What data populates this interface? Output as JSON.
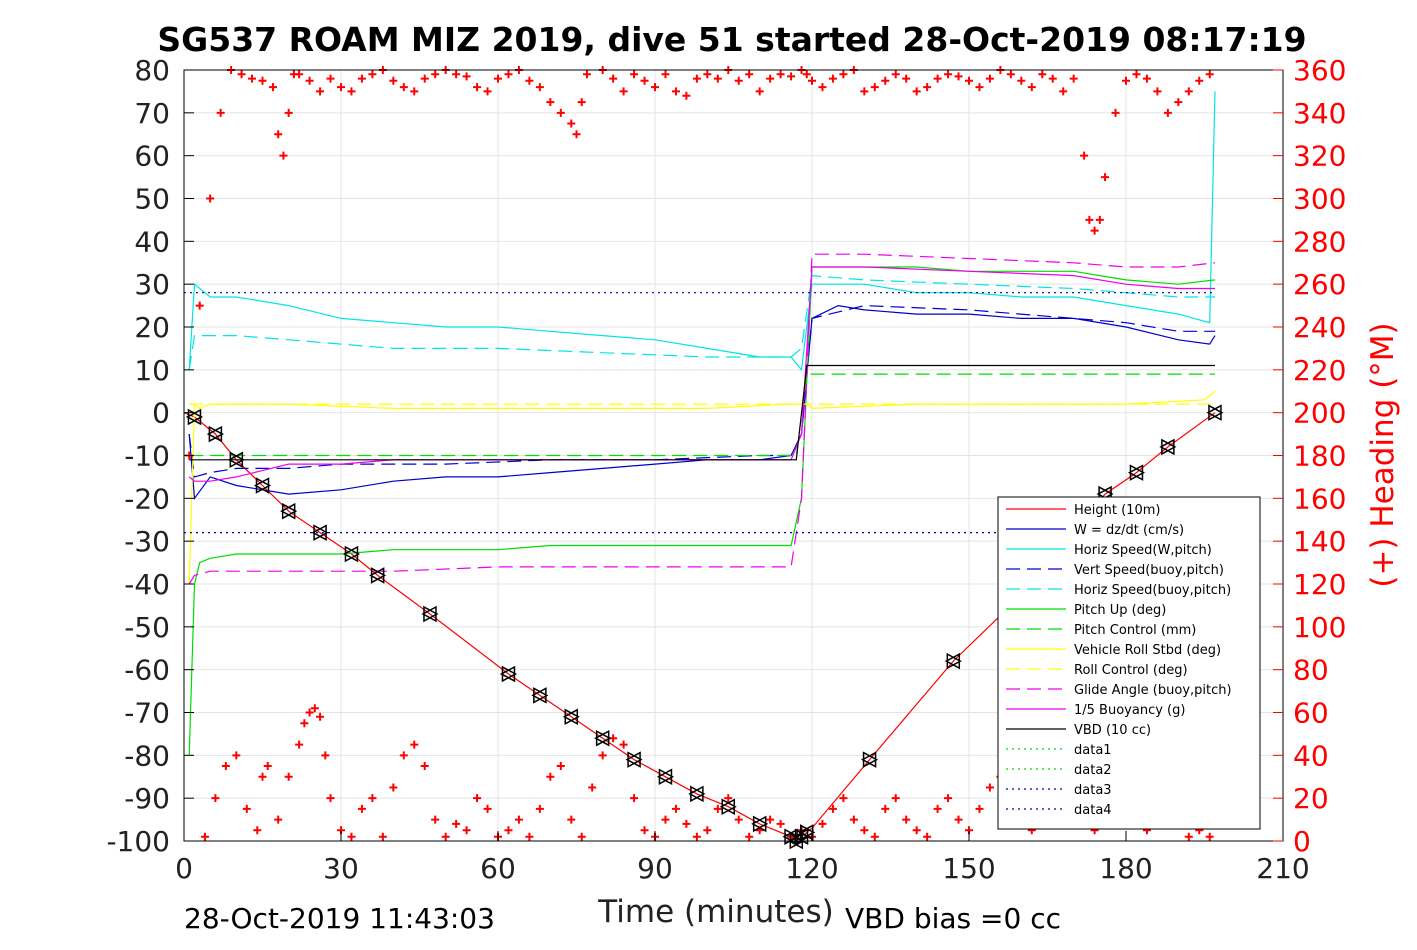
{
  "chart_data": {
    "type": "line",
    "title": "SG537 ROAM MIZ 2019, dive 51 started 28-Oct-2019 08:17:19",
    "xlabel": "Time (minutes)",
    "ylabel": "",
    "y2label": "(+) Heading (°M)",
    "xlim": [
      0,
      210
    ],
    "ylim": [
      -100,
      80
    ],
    "y2lim": [
      0,
      360
    ],
    "xticks": [
      0,
      30,
      60,
      90,
      120,
      150,
      180,
      210
    ],
    "yticks": [
      80,
      70,
      60,
      50,
      40,
      30,
      20,
      10,
      0,
      -10,
      -20,
      -30,
      -40,
      -50,
      -60,
      -70,
      -80,
      -90,
      -100
    ],
    "y2ticks": [
      360,
      340,
      320,
      300,
      280,
      260,
      240,
      220,
      200,
      180,
      160,
      140,
      120,
      100,
      80,
      60,
      40,
      20,
      0
    ],
    "grid": true,
    "legend_position": "right",
    "footer_left": "28-Oct-2019 11:43:03",
    "footer_right": "VBD bias =0 cc",
    "colors": {
      "height": "#ff0000",
      "w": "#0000cc",
      "horiz_w": "#00e5e5",
      "vert_buoy": "#0000cc",
      "horiz_buoy": "#00e5e5",
      "pitch": "#00dd00",
      "pitch_ctrl": "#00dd00",
      "roll": "#ffff00",
      "roll_ctrl": "#ffff00",
      "glide": "#ee00ee",
      "buoy": "#ee00ee",
      "vbd": "#000000",
      "heading": "#ff0000"
    },
    "series": [
      {
        "name": "Height (10m)",
        "key": "height",
        "style": "solid",
        "x": [
          0,
          2,
          6,
          10,
          15,
          20,
          26,
          32,
          37,
          47,
          62,
          68,
          74,
          80,
          86,
          92,
          98,
          104,
          110,
          116,
          117,
          118,
          119,
          120,
          131,
          147,
          158,
          176,
          182,
          188,
          197
        ],
        "y": [
          0,
          -1,
          -5,
          -11,
          -17,
          -23,
          -28,
          -33,
          -38,
          -47,
          -61,
          -66,
          -71,
          -76,
          -81,
          -85,
          -89,
          -92,
          -96,
          -99,
          -100,
          -99,
          -98,
          -97,
          -81,
          -58,
          -45,
          -19,
          -14,
          -8,
          0
        ]
      },
      {
        "name": "W = dz/dt (cm/s)",
        "key": "w",
        "style": "solid",
        "x": [
          1,
          2,
          5,
          10,
          20,
          30,
          40,
          50,
          60,
          70,
          80,
          90,
          100,
          110,
          116,
          118,
          120,
          125,
          130,
          140,
          150,
          160,
          170,
          180,
          190,
          196,
          197
        ],
        "y": [
          -5,
          -20,
          -15,
          -17,
          -19,
          -18,
          -16,
          -15,
          -15,
          -14,
          -13,
          -12,
          -11,
          -11,
          -10,
          -5,
          22,
          25,
          24,
          23,
          23,
          22,
          22,
          20,
          17,
          16,
          18
        ]
      },
      {
        "name": "Horiz Speed(W,pitch)",
        "key": "horiz_w",
        "style": "solid",
        "x": [
          1,
          2,
          5,
          10,
          20,
          30,
          40,
          50,
          60,
          70,
          80,
          90,
          100,
          110,
          116,
          118,
          120,
          130,
          140,
          150,
          160,
          170,
          180,
          190,
          196,
          197
        ],
        "y": [
          10,
          30,
          27,
          27,
          25,
          22,
          21,
          20,
          20,
          19,
          18,
          17,
          15,
          13,
          13,
          10,
          30,
          30,
          28,
          28,
          27,
          27,
          25,
          23,
          21,
          75
        ]
      },
      {
        "name": "Vert Speed(buoy,pitch)",
        "key": "vert_buoy",
        "style": "dashed",
        "x": [
          1,
          2,
          5,
          10,
          20,
          30,
          50,
          70,
          90,
          110,
          116,
          118,
          120,
          130,
          150,
          170,
          180,
          190,
          197
        ],
        "y": [
          -5,
          -15,
          -14,
          -13,
          -13,
          -12,
          -12,
          -11,
          -11,
          -10,
          -10,
          -5,
          22,
          25,
          24,
          22,
          21,
          19,
          19
        ]
      },
      {
        "name": "Horiz Speed(buoy,pitch)",
        "key": "horiz_buoy",
        "style": "dashed",
        "x": [
          1,
          2,
          10,
          20,
          30,
          40,
          50,
          60,
          80,
          100,
          116,
          118,
          120,
          130,
          150,
          170,
          180,
          190,
          197
        ],
        "y": [
          10,
          18,
          18,
          17,
          16,
          15,
          15,
          15,
          14,
          13,
          13,
          15,
          32,
          31,
          30,
          29,
          28,
          27,
          27
        ]
      },
      {
        "name": "Pitch Up (deg)",
        "key": "pitch",
        "style": "solid",
        "x": [
          1,
          2,
          3,
          5,
          10,
          20,
          30,
          40,
          50,
          60,
          70,
          80,
          90,
          100,
          110,
          116,
          118,
          120,
          130,
          140,
          150,
          160,
          170,
          175,
          180,
          190,
          197
        ],
        "y": [
          -80,
          -40,
          -35,
          -34,
          -33,
          -33,
          -33,
          -32,
          -32,
          -32,
          -31,
          -31,
          -31,
          -31,
          -31,
          -31,
          -20,
          34,
          34,
          34,
          33,
          33,
          33,
          32,
          31,
          30,
          31
        ]
      },
      {
        "name": "Pitch Control (mm)",
        "key": "pitch_ctrl",
        "style": "dashed",
        "x": [
          1,
          3,
          60,
          116,
          117,
          119,
          120,
          197
        ],
        "y": [
          -10,
          -10,
          -10,
          -10,
          -10,
          9,
          9,
          9
        ]
      },
      {
        "name": "Vehicle Roll Stbd (deg)",
        "key": "roll",
        "style": "solid",
        "x": [
          1,
          2,
          3,
          5,
          10,
          20,
          40,
          60,
          80,
          100,
          115,
          117,
          119,
          120,
          140,
          160,
          180,
          195,
          197
        ],
        "y": [
          -40,
          2,
          1,
          2,
          2,
          2,
          1,
          1,
          1,
          1,
          2,
          2,
          2,
          1,
          2,
          2,
          2,
          3,
          5
        ]
      },
      {
        "name": "Roll Control (deg)",
        "key": "roll_ctrl",
        "style": "dashed",
        "x": [
          1,
          3,
          116,
          120,
          197
        ],
        "y": [
          2,
          2,
          2,
          2,
          2
        ]
      },
      {
        "name": "Glide Angle (buoy,pitch)",
        "key": "glide",
        "style": "dashed",
        "x": [
          1,
          2,
          5,
          10,
          20,
          40,
          60,
          80,
          100,
          116,
          118,
          120,
          130,
          150,
          170,
          180,
          190,
          197
        ],
        "y": [
          -40,
          -38,
          -37,
          -37,
          -37,
          -37,
          -36,
          -36,
          -36,
          -36,
          -20,
          37,
          37,
          36,
          35,
          34,
          34,
          35
        ]
      },
      {
        "name": "1/5 Buoyancy (g)",
        "key": "buoy",
        "style": "solid",
        "x": [
          1,
          2,
          5,
          10,
          20,
          30,
          40,
          60,
          80,
          100,
          116,
          118,
          120,
          130,
          150,
          170,
          180,
          190,
          197
        ],
        "y": [
          -15,
          -16,
          -16,
          -15,
          -12,
          -12,
          -11,
          -11,
          -11,
          -11,
          -11,
          -5,
          34,
          34,
          33,
          32,
          30,
          29,
          29
        ]
      },
      {
        "name": "VBD (10 cc)",
        "key": "vbd",
        "style": "solid",
        "x": [
          1,
          2,
          116,
          117,
          119,
          120,
          197
        ],
        "y": [
          -11,
          -11,
          -11,
          -11,
          11,
          11,
          11
        ]
      },
      {
        "name": "data1",
        "key": "data1",
        "style": "dotted",
        "color": "#00dd00",
        "x": [],
        "y": []
      },
      {
        "name": "data2",
        "key": "data2",
        "style": "dotted",
        "color": "#00dd00",
        "x": [],
        "y": []
      },
      {
        "name": "data3",
        "key": "data3",
        "style": "dotted",
        "color": "#0000aa",
        "x": [
          0,
          197
        ],
        "y": [
          28,
          28
        ]
      },
      {
        "name": "data4",
        "key": "data4",
        "style": "dotted",
        "color": "#0000aa",
        "x": [
          0,
          197
        ],
        "y": [
          -28,
          -28
        ]
      }
    ],
    "heading": {
      "name": "Heading (°M)",
      "marker": "+",
      "x": [
        1,
        3,
        5,
        7,
        9,
        11,
        13,
        15,
        17,
        18,
        19,
        20,
        21,
        22,
        24,
        26,
        28,
        30,
        32,
        34,
        36,
        38,
        40,
        42,
        44,
        46,
        48,
        50,
        52,
        54,
        56,
        58,
        60,
        62,
        64,
        66,
        68,
        70,
        72,
        74,
        75,
        76,
        77,
        80,
        82,
        84,
        86,
        88,
        90,
        92,
        94,
        96,
        98,
        100,
        102,
        104,
        106,
        108,
        110,
        112,
        114,
        116,
        118,
        119,
        120,
        122,
        124,
        126,
        128,
        130,
        132,
        134,
        136,
        138,
        140,
        142,
        144,
        146,
        148,
        150,
        152,
        154,
        156,
        158,
        160,
        162,
        164,
        166,
        168,
        170,
        172,
        173,
        174,
        175,
        176,
        178,
        180,
        182,
        184,
        186,
        188,
        190,
        192,
        194,
        196
      ],
      "y": [
        180,
        250,
        300,
        340,
        360,
        358,
        356,
        355,
        352,
        330,
        320,
        340,
        358,
        358,
        355,
        350,
        356,
        352,
        350,
        356,
        358,
        360,
        355,
        352,
        350,
        356,
        358,
        360,
        358,
        357,
        352,
        350,
        356,
        358,
        360,
        355,
        352,
        345,
        340,
        335,
        330,
        345,
        358,
        360,
        356,
        350,
        358,
        355,
        352,
        358,
        350,
        348,
        356,
        358,
        356,
        360,
        355,
        358,
        350,
        356,
        358,
        357,
        360,
        358,
        355,
        352,
        356,
        358,
        360,
        350,
        352,
        355,
        358,
        356,
        350,
        352,
        356,
        358,
        357,
        355,
        352,
        356,
        360,
        358,
        355,
        352,
        358,
        356,
        350,
        356,
        320,
        290,
        285,
        290,
        310,
        340,
        355,
        358,
        356,
        350,
        340,
        345,
        350,
        355,
        358
      ],
      "x2": [
        4,
        6,
        8,
        10,
        12,
        14,
        15,
        16,
        18,
        20,
        22,
        23,
        24,
        25,
        26,
        27,
        28,
        30,
        32,
        34,
        36,
        38,
        40,
        42,
        44,
        46,
        48,
        50,
        52,
        54,
        56,
        58,
        60,
        62,
        64,
        66,
        68,
        70,
        72,
        74,
        76,
        78,
        80,
        82,
        84,
        86,
        88,
        90,
        92,
        94,
        96,
        98,
        100,
        102,
        104,
        106,
        108,
        110,
        112,
        114,
        116,
        118,
        120,
        122,
        124,
        126,
        128,
        130,
        132,
        134,
        136,
        138,
        140,
        142,
        144,
        146,
        148,
        150,
        152,
        154,
        156,
        158,
        160,
        162,
        164,
        166,
        168,
        170,
        172,
        174,
        176,
        178,
        180,
        182,
        184,
        186,
        188,
        190,
        192,
        194,
        196
      ],
      "y2": [
        2,
        20,
        35,
        40,
        15,
        5,
        30,
        35,
        10,
        30,
        45,
        55,
        60,
        62,
        58,
        40,
        20,
        5,
        2,
        15,
        20,
        2,
        25,
        40,
        45,
        35,
        10,
        2,
        8,
        5,
        20,
        15,
        2,
        5,
        10,
        2,
        15,
        30,
        35,
        10,
        2,
        25,
        40,
        48,
        45,
        20,
        5,
        2,
        10,
        15,
        8,
        2,
        5,
        15,
        20,
        10,
        2,
        5,
        10,
        8,
        2,
        5,
        2,
        8,
        15,
        20,
        10,
        5,
        2,
        15,
        20,
        10,
        5,
        2,
        15,
        20,
        10,
        5,
        15,
        25,
        30,
        20,
        10,
        5,
        20,
        35,
        40,
        30,
        15,
        5,
        20,
        30,
        25,
        15,
        5,
        10,
        15,
        8,
        2,
        5,
        2
      ]
    },
    "triangle_markers": {
      "x": [
        2,
        6,
        10,
        15,
        20,
        26,
        32,
        37,
        47,
        62,
        68,
        74,
        80,
        86,
        92,
        98,
        104,
        110,
        116,
        117,
        118,
        119,
        131,
        147,
        176,
        182,
        188,
        197
      ],
      "y": [
        -1,
        -5,
        -11,
        -17,
        -23,
        -28,
        -33,
        -38,
        -47,
        -61,
        -66,
        -71,
        -76,
        -81,
        -85,
        -89,
        -92,
        -96,
        -99,
        -100,
        -99,
        -98,
        -81,
        -58,
        -19,
        -14,
        -8,
        0
      ]
    }
  }
}
